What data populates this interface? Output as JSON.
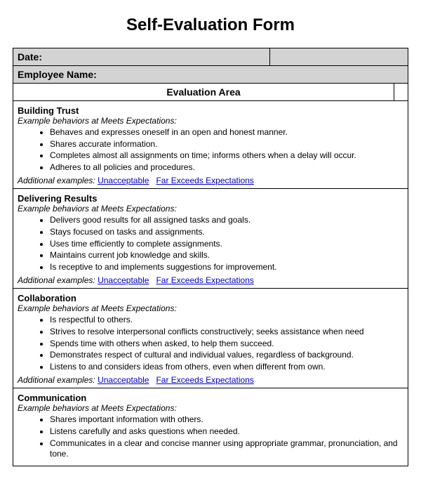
{
  "title": "Self-Evaluation Form",
  "header": {
    "date_label": "Date:",
    "name_label": "Employee Name:",
    "eval_area_label": "Evaluation Area"
  },
  "sub_label": "Example behaviors at Meets Expectations:",
  "additional_label": "Additional examples:",
  "link_unacceptable": "Unacceptable",
  "link_far_exceeds": "Far Exceeds Expectations",
  "sections": [
    {
      "title": "Building Trust",
      "bullets": [
        "Behaves and expresses oneself in an open and honest manner.",
        "Shares accurate information.",
        "Completes almost all assignments on time; informs others when a delay will occur.",
        "Adheres to all policies and procedures."
      ],
      "show_links": true
    },
    {
      "title": "Delivering Results",
      "bullets": [
        "Delivers good results for all assigned tasks and goals.",
        "Stays focused on tasks and assignments.",
        "Uses time efficiently to complete assignments.",
        "Maintains current job knowledge and skills.",
        "Is receptive to and implements suggestions for improvement."
      ],
      "show_links": true
    },
    {
      "title": "Collaboration",
      "bullets": [
        "Is respectful to others.",
        "Strives to resolve interpersonal conflicts constructively; seeks assistance when need",
        "Spends time with others when asked, to help them succeed.",
        "Demonstrates respect of cultural and individual values, regardless of background.",
        "Listens to and considers ideas from others, even when different from own."
      ],
      "show_links": true
    },
    {
      "title": "Communication",
      "bullets": [
        "Shares important information with others.",
        "Listens carefully and asks questions when needed.",
        "Communicates in a clear and concise manner using appropriate grammar, pronunciation, and tone."
      ],
      "show_links": false
    }
  ]
}
